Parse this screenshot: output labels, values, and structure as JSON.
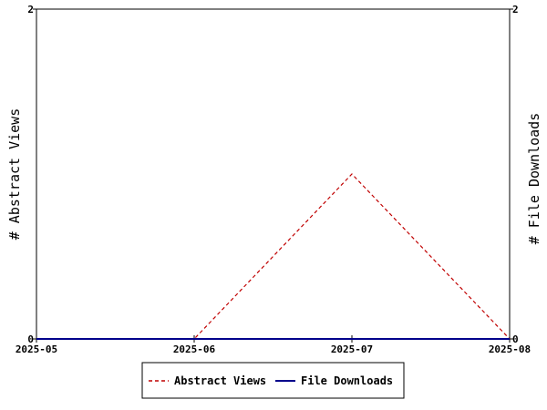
{
  "chart_data": {
    "type": "line",
    "x": [
      "2025-05",
      "2025-06",
      "2025-07",
      "2025-08"
    ],
    "series": [
      {
        "name": "Abstract Views",
        "axis": "left",
        "values": [
          0,
          0,
          1,
          0
        ],
        "color": "#c00000",
        "style": "dashed"
      },
      {
        "name": "File Downloads",
        "axis": "right",
        "values": [
          0,
          0,
          0,
          0
        ],
        "color": "#00008b",
        "style": "solid"
      }
    ],
    "ylabel_left": "# Abstract Views",
    "ylabel_right": "# File Downloads",
    "ylim_left": [
      0,
      2
    ],
    "ylim_right": [
      0,
      2
    ],
    "yticks_left": [
      "0",
      "2"
    ],
    "yticks_right": [
      "0",
      "2"
    ],
    "grid": false,
    "legend_position": "bottom"
  }
}
